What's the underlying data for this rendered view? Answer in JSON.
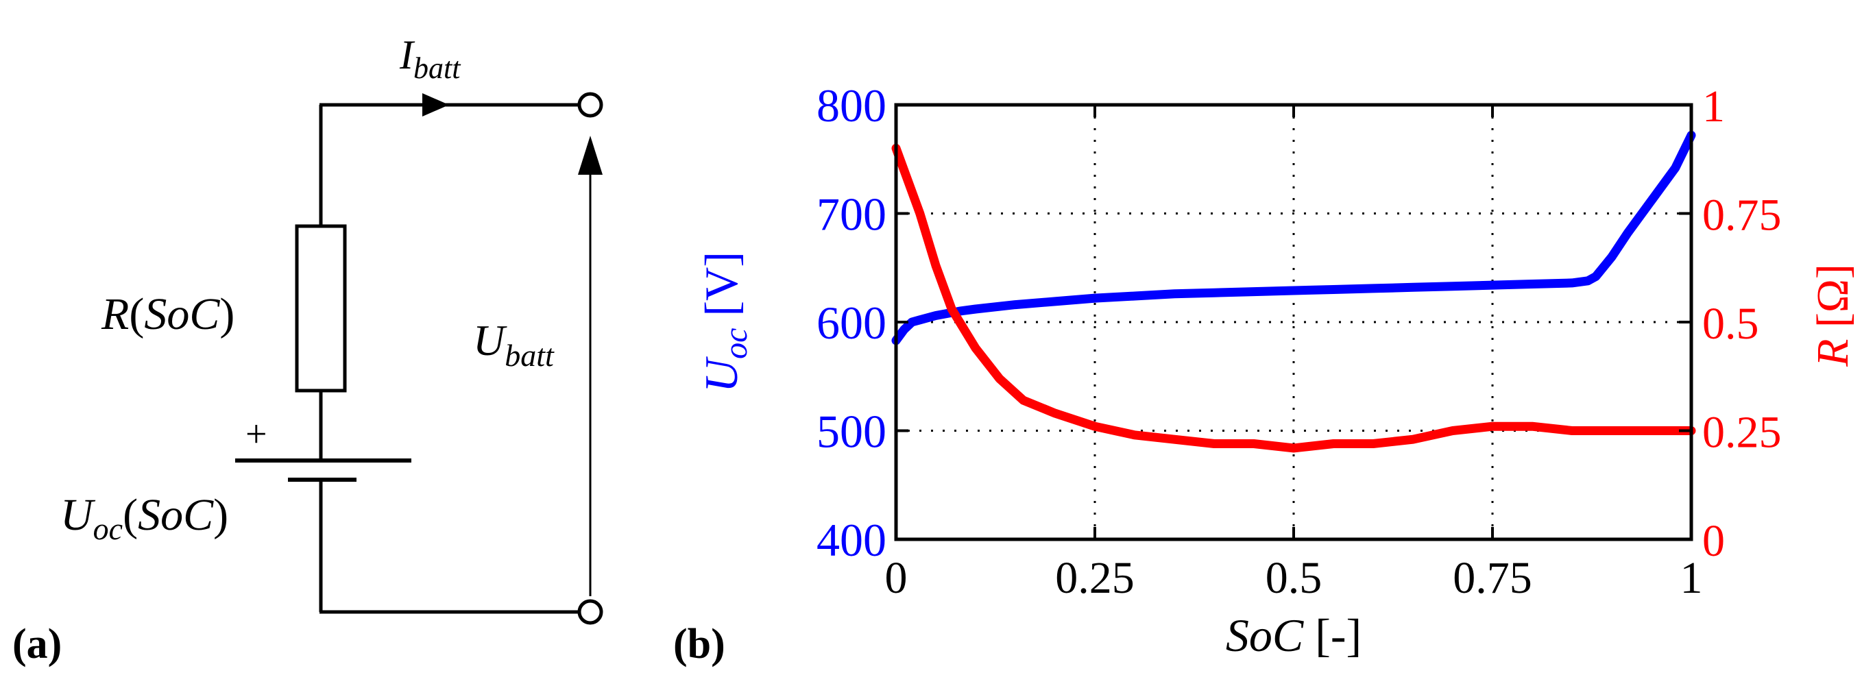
{
  "circuit": {
    "current_label": {
      "main": "I",
      "sub": "batt"
    },
    "resistor_label": {
      "main": "R",
      "arg": "SoC"
    },
    "plus_sign": "+",
    "source_label": {
      "main": "U",
      "sub": "oc",
      "arg": "SoC"
    },
    "voltage_label": {
      "main": "U",
      "sub": "batt"
    }
  },
  "panel_labels": {
    "a": "(a)",
    "b": "(b)"
  },
  "colors": {
    "left_axis": "#0000ff",
    "right_axis": "#ff0000",
    "axes": "#000000",
    "grid": "#000000"
  },
  "chart_data": {
    "type": "line",
    "title": "",
    "xlabel": {
      "italic": "SoC",
      "rest": " [-]"
    },
    "ylabel_left": {
      "main": "U",
      "sub": "oc",
      "rest": " [V]"
    },
    "ylabel_right": {
      "main": "R",
      "rest": " [Ω]"
    },
    "xlim": [
      0,
      1
    ],
    "ylim_left": [
      400,
      800
    ],
    "ylim_right": [
      0,
      1
    ],
    "grid": true,
    "x_ticks": [
      0,
      0.25,
      0.5,
      0.75,
      1
    ],
    "x_tick_labels": [
      "0",
      "0.25",
      "0.5",
      "0.75",
      "1"
    ],
    "y_left_ticks": [
      400,
      500,
      600,
      700,
      800
    ],
    "y_left_tick_labels": [
      "400",
      "500",
      "600",
      "700",
      "800"
    ],
    "y_right_ticks": [
      0,
      0.25,
      0.5,
      0.75,
      1
    ],
    "y_right_tick_labels": [
      "0",
      "0.25",
      "0.5",
      "0.75",
      "1"
    ],
    "series": [
      {
        "name": "U_oc",
        "axis": "left",
        "color": "#0000ff",
        "x": [
          0,
          0.01,
          0.02,
          0.03,
          0.05,
          0.08,
          0.1,
          0.15,
          0.2,
          0.25,
          0.3,
          0.35,
          0.4,
          0.45,
          0.5,
          0.55,
          0.6,
          0.65,
          0.7,
          0.75,
          0.8,
          0.85,
          0.87,
          0.88,
          0.9,
          0.92,
          0.95,
          0.98,
          1.0
        ],
        "y": [
          583,
          593,
          600,
          602,
          606,
          610,
          612,
          616,
          619,
          622,
          624,
          626,
          627,
          628,
          629,
          630,
          631,
          632,
          633,
          634,
          635,
          636,
          638,
          642,
          660,
          682,
          712,
          742,
          772
        ]
      },
      {
        "name": "R",
        "axis": "right",
        "color": "#ff0000",
        "x": [
          0,
          0.01,
          0.03,
          0.05,
          0.07,
          0.1,
          0.13,
          0.16,
          0.2,
          0.25,
          0.3,
          0.35,
          0.4,
          0.45,
          0.5,
          0.55,
          0.6,
          0.65,
          0.7,
          0.75,
          0.8,
          0.85,
          0.9,
          0.95,
          1.0
        ],
        "y": [
          0.9,
          0.85,
          0.75,
          0.63,
          0.53,
          0.44,
          0.37,
          0.32,
          0.29,
          0.26,
          0.24,
          0.23,
          0.22,
          0.22,
          0.21,
          0.22,
          0.22,
          0.23,
          0.25,
          0.26,
          0.26,
          0.25,
          0.25,
          0.25,
          0.25
        ]
      }
    ]
  }
}
